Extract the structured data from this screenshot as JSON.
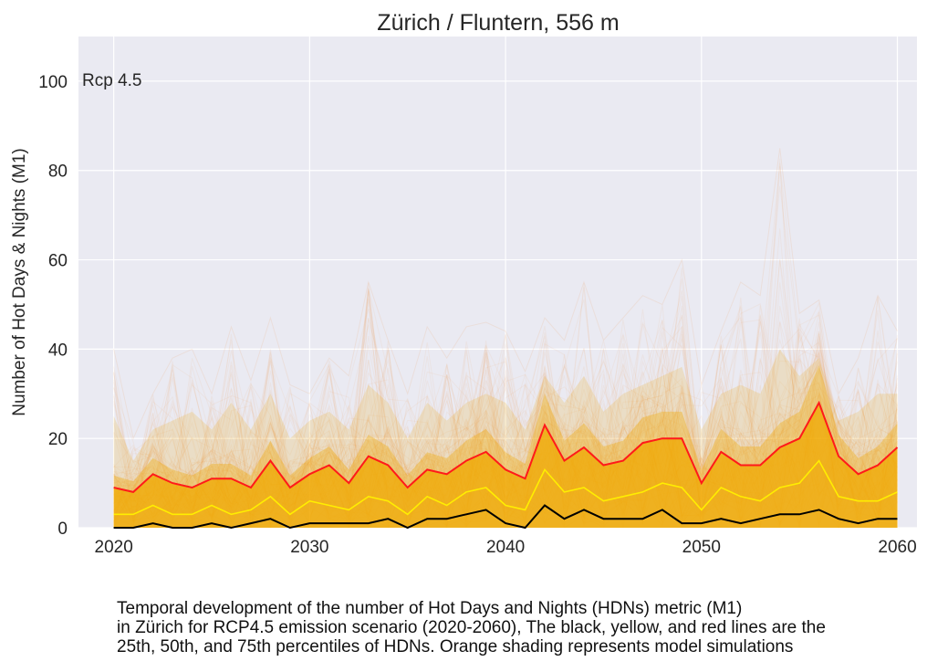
{
  "colors": {
    "background": "#eaeaf2",
    "grid": "#ffffff",
    "p25": "#000000",
    "p50": "#ffee00",
    "p75": "#ff1a1a",
    "shading": "#f0a800",
    "spaghetti": "#f28a3a"
  },
  "chart_data": {
    "type": "line",
    "title": "Zürich / Fluntern, 556 m",
    "xlabel": "",
    "ylabel": "Number of Hot Days & Nights (M1)",
    "annotation": "Rcp 4.5",
    "xlim": [
      2018.2,
      2061
    ],
    "ylim": [
      0,
      110
    ],
    "xticks": [
      2020,
      2030,
      2040,
      2050,
      2060
    ],
    "yticks": [
      0,
      20,
      40,
      60,
      80,
      100
    ],
    "grid": true,
    "x": [
      2020,
      2021,
      2022,
      2023,
      2024,
      2025,
      2026,
      2027,
      2028,
      2029,
      2030,
      2031,
      2032,
      2033,
      2034,
      2035,
      2036,
      2037,
      2038,
      2039,
      2040,
      2041,
      2042,
      2043,
      2044,
      2045,
      2046,
      2047,
      2048,
      2049,
      2050,
      2051,
      2052,
      2053,
      2054,
      2055,
      2056,
      2057,
      2058,
      2059,
      2060
    ],
    "series": [
      {
        "name": "25th percentile",
        "color": "#000000",
        "values": [
          0,
          0,
          1,
          0,
          0,
          1,
          0,
          1,
          2,
          0,
          1,
          1,
          1,
          1,
          2,
          0,
          2,
          2,
          3,
          4,
          1,
          0,
          5,
          2,
          4,
          2,
          2,
          2,
          4,
          1,
          1,
          2,
          1,
          2,
          3,
          3,
          4,
          2,
          1,
          2,
          2
        ]
      },
      {
        "name": "50th percentile",
        "color": "#ffee00",
        "values": [
          3,
          3,
          5,
          3,
          3,
          5,
          3,
          4,
          7,
          3,
          6,
          5,
          4,
          7,
          6,
          3,
          7,
          5,
          8,
          9,
          5,
          4,
          13,
          8,
          9,
          6,
          7,
          8,
          10,
          9,
          4,
          9,
          7,
          6,
          9,
          10,
          15,
          7,
          6,
          6,
          8
        ]
      },
      {
        "name": "75th percentile",
        "color": "#ff1a1a",
        "values": [
          9,
          8,
          12,
          10,
          9,
          11,
          11,
          9,
          15,
          9,
          12,
          14,
          10,
          16,
          14,
          9,
          13,
          12,
          15,
          17,
          13,
          11,
          23,
          15,
          18,
          14,
          15,
          19,
          20,
          20,
          10,
          17,
          14,
          14,
          18,
          20,
          28,
          16,
          12,
          14,
          18
        ]
      }
    ],
    "ensemble_max": [
      40,
      20,
      30,
      38,
      40,
      30,
      45,
      33,
      47,
      32,
      30,
      38,
      34,
      55,
      42,
      30,
      45,
      38,
      45,
      46,
      44,
      35,
      47,
      42,
      55,
      42,
      47,
      52,
      50,
      60,
      32,
      44,
      55,
      52,
      85,
      48,
      51,
      30,
      38,
      52,
      44
    ],
    "ensemble_upper": [
      25,
      15,
      22,
      24,
      26,
      22,
      28,
      22,
      30,
      20,
      24,
      26,
      22,
      32,
      28,
      20,
      28,
      24,
      28,
      30,
      28,
      22,
      34,
      28,
      34,
      26,
      30,
      32,
      34,
      36,
      22,
      30,
      32,
      30,
      40,
      34,
      38,
      24,
      26,
      30,
      30
    ]
  },
  "caption": {
    "line1": "Temporal development of the number of Hot Days and Nights (HDNs) metric (M1)",
    "line2": "in Zürich for RCP4.5 emission scenario (2020-2060), The black, yellow, and red lines are the",
    "line3": "25th, 50th, and 75th percentiles of HDNs. Orange shading represents model simulations"
  }
}
